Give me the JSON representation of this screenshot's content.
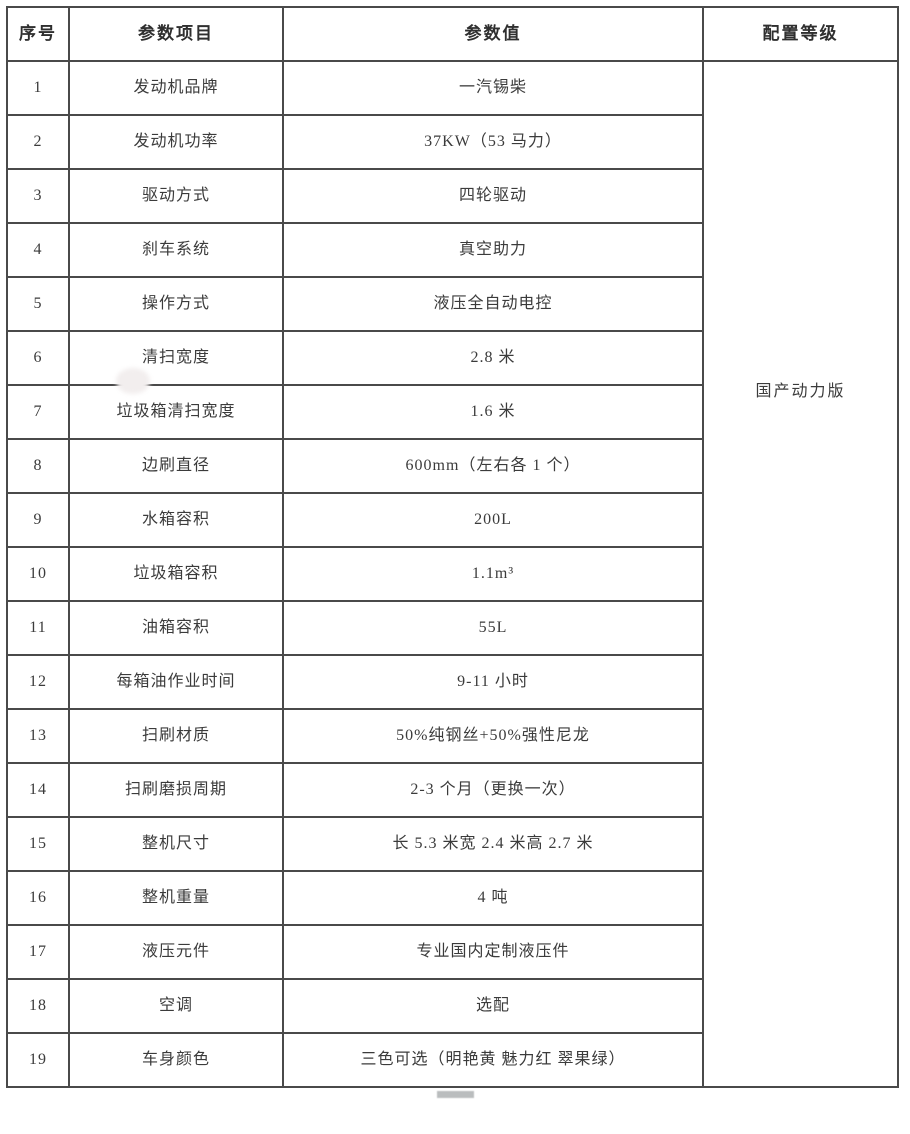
{
  "page": {
    "background_color": "#ffffff",
    "border_color": "#4a4a4a",
    "text_color": "#3b3b3b"
  },
  "table": {
    "headers": {
      "no": "序号",
      "item": "参数项目",
      "value": "参数值",
      "config": "配置等级"
    },
    "config_level": "国产动力版",
    "rows": [
      {
        "no": "1",
        "item": "发动机品牌",
        "value": "一汽锡柴"
      },
      {
        "no": "2",
        "item": "发动机功率",
        "value": "37KW（53 马力）"
      },
      {
        "no": "3",
        "item": "驱动方式",
        "value": "四轮驱动"
      },
      {
        "no": "4",
        "item": "刹车系统",
        "value": "真空助力"
      },
      {
        "no": "5",
        "item": "操作方式",
        "value": "液压全自动电控"
      },
      {
        "no": "6",
        "item": "清扫宽度",
        "value": "2.8 米"
      },
      {
        "no": "7",
        "item": "垃圾箱清扫宽度",
        "value": "1.6 米"
      },
      {
        "no": "8",
        "item": "边刷直径",
        "value": "600mm（左右各 1 个）"
      },
      {
        "no": "9",
        "item": "水箱容积",
        "value": "200L"
      },
      {
        "no": "10",
        "item": "垃圾箱容积",
        "value": "1.1m³"
      },
      {
        "no": "11",
        "item": "油箱容积",
        "value": "55L"
      },
      {
        "no": "12",
        "item": "每箱油作业时间",
        "value": "9-11 小时"
      },
      {
        "no": "13",
        "item": "扫刷材质",
        "value": "50%纯钢丝+50%强性尼龙"
      },
      {
        "no": "14",
        "item": "扫刷磨损周期",
        "value": "2-3 个月（更换一次）"
      },
      {
        "no": "15",
        "item": "整机尺寸",
        "value": "长 5.3 米宽 2.4 米高 2.7 米"
      },
      {
        "no": "16",
        "item": "整机重量",
        "value": "4 吨"
      },
      {
        "no": "17",
        "item": "液压元件",
        "value": "专业国内定制液压件"
      },
      {
        "no": "18",
        "item": "空调",
        "value": "选配"
      },
      {
        "no": "19",
        "item": "车身颜色",
        "value": "三色可选（明艳黄 魅力红 翠果绿）"
      }
    ]
  }
}
